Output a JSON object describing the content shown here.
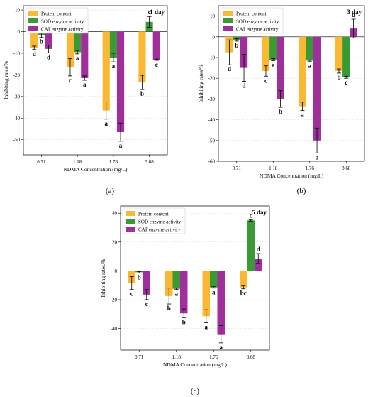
{
  "colors": {
    "protein": "#FBB833",
    "sod": "#3A9A35",
    "cat": "#A02F9C"
  },
  "chart_data": [
    {
      "type": "bar",
      "panel_label": "(a)",
      "day_label": "1 day",
      "xlabel": "NDMA Concentration (mg/L)",
      "ylabel": "Inhibiting rates/%",
      "categories": [
        "0.71",
        "1.18",
        "1.76",
        "3.68"
      ],
      "ylim": [
        -57,
        12
      ],
      "yticks": [
        10,
        0,
        -10,
        -20,
        -30,
        -40,
        -50
      ],
      "grid": true,
      "legend_position": "top-left",
      "series": [
        {
          "name": "Protein content",
          "values": [
            -7.5,
            -16.5,
            -36.5,
            -23.5
          ],
          "errors": [
            0.8,
            4,
            4,
            3.3
          ],
          "labels": [
            "d",
            "c",
            "a",
            "b"
          ]
        },
        {
          "name": "SOD enzyme activity",
          "values": [
            -1.5,
            -9.5,
            -12.0,
            4.5
          ],
          "errors": [
            1.2,
            0.8,
            2.0,
            2.5
          ],
          "labels": [
            "b",
            "a",
            "a",
            "c"
          ]
        },
        {
          "name": "CAT enzyme activity",
          "values": [
            -8.0,
            -21.5,
            -46.5,
            -13.0
          ],
          "errors": [
            1.8,
            1.0,
            4.2,
            0.3
          ],
          "labels": [
            "d",
            "a",
            "a",
            "c"
          ]
        }
      ]
    },
    {
      "type": "bar",
      "panel_label": "(b)",
      "day_label": "3 day",
      "xlabel": "NDMA Concentration (mg/L)",
      "ylabel": "Inhibiting rates/%",
      "categories": [
        "0.71",
        "1.18",
        "1.76",
        "3.68"
      ],
      "ylim": [
        -60,
        15
      ],
      "yticks": [
        10,
        0,
        -10,
        -20,
        -30,
        -40,
        -50,
        -60
      ],
      "grid": true,
      "legend_position": "top-left",
      "series": [
        {
          "name": "Protein content",
          "values": [
            -7.5,
            -16.5,
            -33.5,
            -16.5
          ],
          "errors": [
            6.0,
            2.5,
            2.0,
            1.0
          ],
          "labels": [
            "d",
            "c",
            "a",
            "b"
          ]
        },
        {
          "name": "SOD enzyme activity",
          "values": [
            -1.5,
            -11.0,
            -11.5,
            -19.5
          ],
          "errors": [
            0.6,
            0.5,
            0.3,
            0.5
          ],
          "labels": [
            "b",
            "a",
            "a",
            "c"
          ]
        },
        {
          "name": "CAT enzyme activity",
          "values": [
            -15.0,
            -30.0,
            -50.0,
            4.0
          ],
          "errors": [
            6.5,
            4.0,
            6.0,
            4.5
          ],
          "labels": [
            "d",
            "b",
            "a",
            "d"
          ]
        }
      ]
    },
    {
      "type": "bar",
      "panel_label": "(c)",
      "day_label": "5 day",
      "xlabel": "NDMA Concentration (mg/L)",
      "ylabel": "Inhibiting rates/%",
      "categories": [
        "0.71",
        "1.18",
        "1.76",
        "3.68"
      ],
      "ylim": [
        -55,
        45
      ],
      "yticks": [
        40,
        20,
        0,
        -20,
        -40
      ],
      "grid": true,
      "legend_position": "top-left",
      "series": [
        {
          "name": "Protein content",
          "values": [
            -8.5,
            -17.5,
            -31.5,
            -11.5
          ],
          "errors": [
            4.5,
            5.5,
            4.5,
            1.0
          ],
          "labels": [
            "c",
            "b",
            "a",
            "bc"
          ]
        },
        {
          "name": "SOD enzyme activity",
          "values": [
            -1.0,
            -12.5,
            -11.5,
            35.0
          ],
          "errors": [
            0.5,
            0.5,
            0.5,
            0.5
          ],
          "labels": [
            "b",
            "a",
            "a",
            "c"
          ]
        },
        {
          "name": "CAT enzyme activity",
          "values": [
            -16.5,
            -29.5,
            -44.0,
            8.5
          ],
          "errors": [
            3.5,
            3.0,
            6.0,
            3.5
          ],
          "labels": [
            "c",
            "b",
            "a",
            "d"
          ]
        }
      ]
    }
  ]
}
